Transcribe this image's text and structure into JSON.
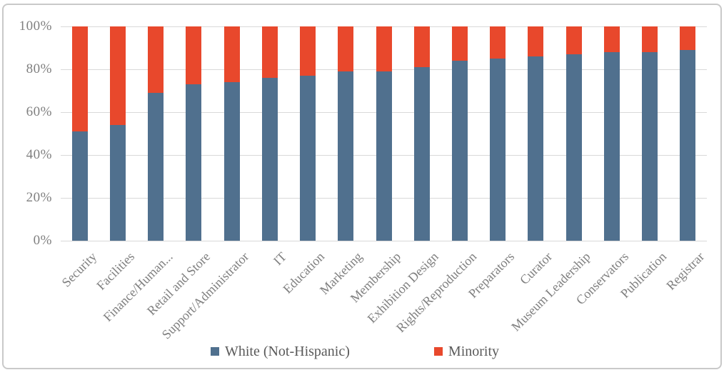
{
  "chart_data": {
    "type": "bar",
    "subtype": "100-percent-stacked-column",
    "title": "",
    "xlabel": "",
    "ylabel": "",
    "categories": [
      "Security",
      "Facilities",
      "Finance/Human...",
      "Retail and Store",
      "Support/Administrator",
      "IT",
      "Education",
      "Marketing",
      "Membership",
      "Exhibition Design",
      "Rights/Reproduction",
      "Preparators",
      "Curator",
      "Museum Leadership",
      "Conservators",
      "Publication",
      "Registrar"
    ],
    "series": [
      {
        "name": "White (Not-Hispanic)",
        "color": "#50708E",
        "values": [
          51,
          54,
          69,
          73,
          74,
          76,
          77,
          79,
          79,
          81,
          84,
          85,
          86,
          87,
          88,
          88,
          89
        ]
      },
      {
        "name": "Minority",
        "color": "#E8482C",
        "values": [
          49,
          46,
          31,
          27,
          26,
          24,
          23,
          21,
          21,
          19,
          16,
          15,
          14,
          13,
          12,
          12,
          11
        ]
      }
    ],
    "ylim": [
      0,
      100
    ],
    "yticks": [
      0,
      20,
      40,
      60,
      80,
      100
    ],
    "ytick_labels": [
      "0%",
      "20%",
      "40%",
      "60%",
      "80%",
      "100%"
    ],
    "grid": true,
    "legend_position": "bottom",
    "colors": {
      "grid": "#D9D9D9",
      "tick_text": "#7F7F7F",
      "legend_text": "#595959",
      "card_border": "#C9C9C9"
    }
  }
}
